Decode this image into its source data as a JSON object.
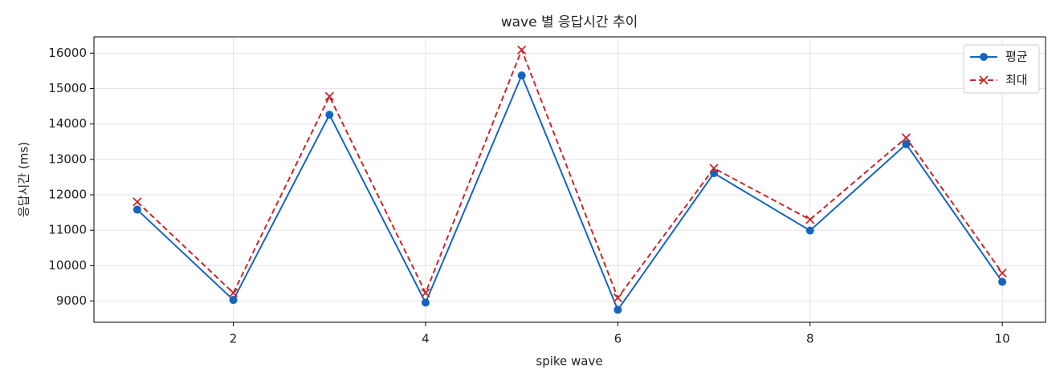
{
  "chart_data": {
    "type": "line",
    "title": "wave 별 응답시간 추이",
    "xlabel": "spike wave",
    "ylabel": "응답시간 (ms)",
    "x": [
      1,
      2,
      3,
      4,
      5,
      6,
      7,
      8,
      9,
      10
    ],
    "series": [
      {
        "name": "평균",
        "color": "#1565c0",
        "linestyle": "solid",
        "marker": "circle",
        "values": [
          11580,
          9030,
          14260,
          8955,
          15370,
          8750,
          12610,
          10990,
          13430,
          9540
        ]
      },
      {
        "name": "최대",
        "color": "#c62828",
        "linestyle": "dashed",
        "marker": "x",
        "values": [
          11800,
          9230,
          14780,
          9230,
          16090,
          9090,
          12750,
          11300,
          13610,
          9790
        ]
      }
    ],
    "xlim": [
      0.55,
      10.45
    ],
    "xticks": [
      2,
      4,
      6,
      8,
      10
    ],
    "ylim": [
      8400,
      16460
    ],
    "yticks": [
      9000,
      10000,
      11000,
      12000,
      13000,
      14000,
      15000,
      16000
    ],
    "grid": true,
    "legend": "upper right"
  }
}
